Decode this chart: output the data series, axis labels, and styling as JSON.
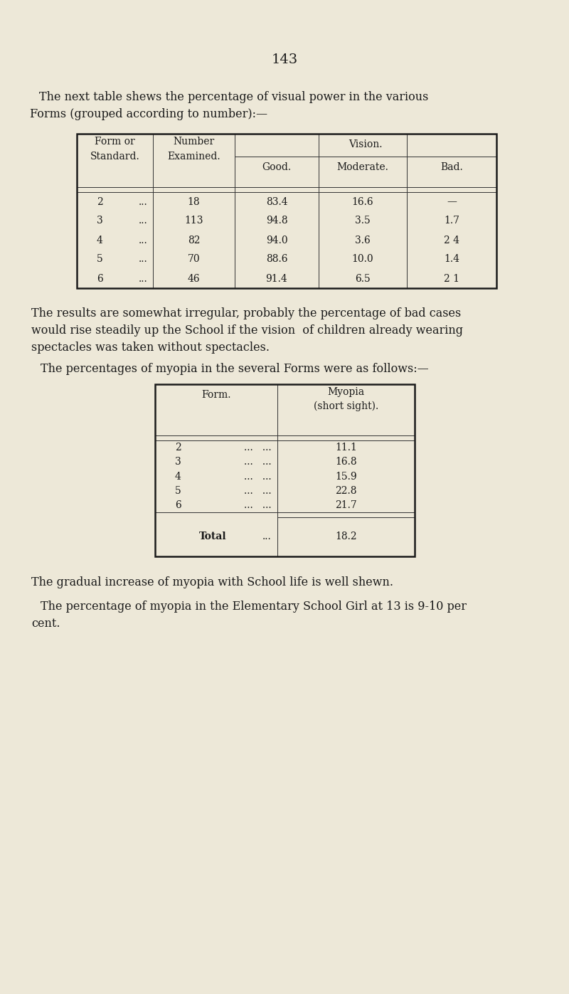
{
  "bg_color": "#ede8d8",
  "page_number": "143",
  "intro_text1": "The next table shews the percentage of visual power in the various",
  "intro_text2": "Forms (grouped according to number):—",
  "table1_rows": [
    [
      "2   ...",
      "18",
      "83.4",
      "16.6",
      "—"
    ],
    [
      "3   ...",
      "113",
      "94.8",
      "3.5",
      "1.7"
    ],
    [
      "4   ...",
      "82",
      "94.0",
      "3.6",
      "2 4"
    ],
    [
      "5   ...",
      "70",
      "88.6",
      "10.0",
      "1.4"
    ],
    [
      "6   ...",
      "46",
      "91.4",
      "6.5",
      "2 1"
    ]
  ],
  "middle_text1": "The results are somewhat irregular, probably the percentage of bad cases",
  "middle_text2": "would rise steadily up the School if the vision  of children already wearing",
  "middle_text3": "spectacles was taken without spectacles.",
  "middle_text4": "The percentages of myopia in the several Forms were as follows:—",
  "table2_rows": [
    [
      "2   ...   ...",
      "11.1"
    ],
    [
      "3   ...   ...",
      "16.8"
    ],
    [
      "4   ...   ...",
      "15.9"
    ],
    [
      "5   ...   ...",
      "22.8"
    ],
    [
      "6   ...   ..",
      "21.7"
    ]
  ],
  "table2_total": [
    "Total   ...",
    "18.2"
  ],
  "final_text1": "The gradual increase of myopia with School life is well shewn.",
  "final_text2": "The percentage of myopia in the Elementary School Girl at 13 is 9‑10 per",
  "final_text3": "cent."
}
